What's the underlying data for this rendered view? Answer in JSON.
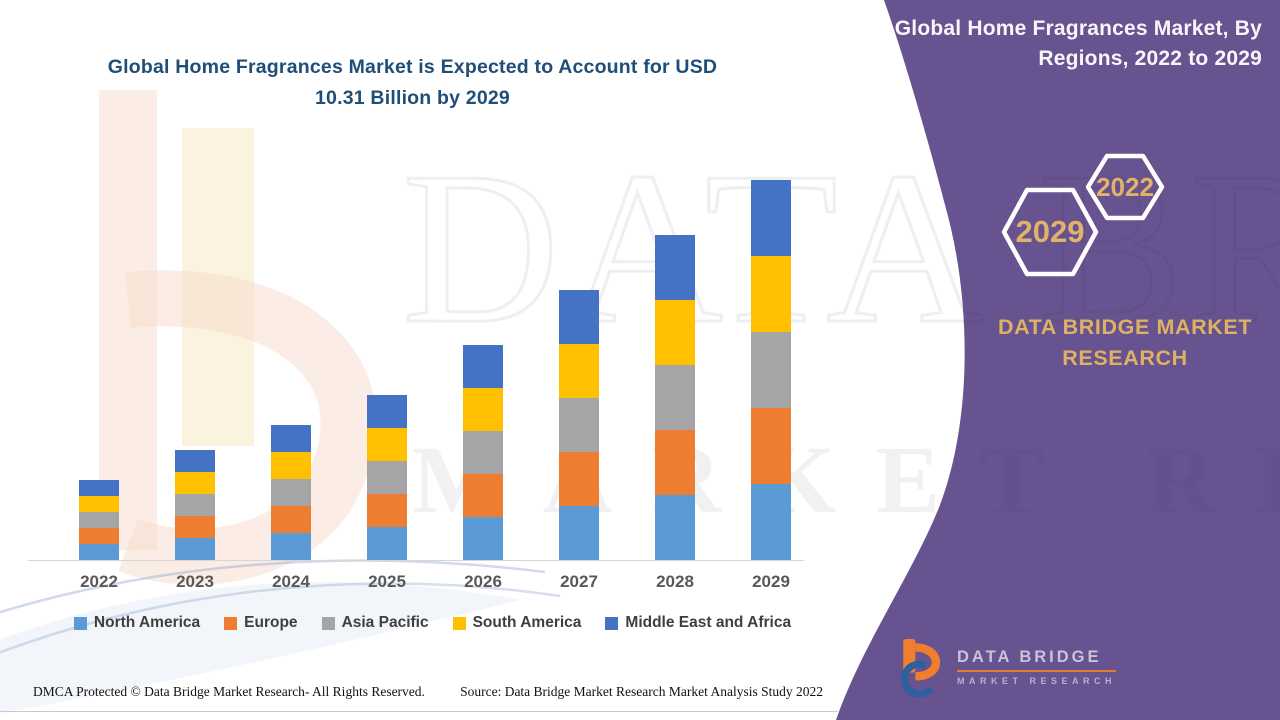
{
  "left_panel": {
    "title_line1": "Global Home Fragrances Market is Expected to Account for USD",
    "title_line2": "10.31 Billion by 2029",
    "footer": {
      "dmca": "DMCA Protected © Data Bridge Market Research- All Rights Reserved.",
      "source": "Source: Data Bridge Market Research Market Analysis Study 2022"
    }
  },
  "right_panel": {
    "title_line1": "Global Home Fragrances Market, By",
    "title_line2": "Regions, 2022 to 2029",
    "hexagon_back_label": "2029",
    "hexagon_front_label": "2022",
    "brand_line1": "DATA BRIDGE MARKET",
    "brand_line2": "RESEARCH",
    "logo_name": "DATA BRIDGE",
    "logo_sub": "MARKET RESEARCH"
  },
  "watermark": {
    "row1": "DATA BRIDGE",
    "row2": "MARKET RESEARCH"
  },
  "colors": {
    "purple_panel": "#665390",
    "gold_accent": "#DFB163",
    "title_blue": "#1F4E79"
  },
  "chart_data": {
    "type": "bar",
    "stacked": true,
    "title": "Global Home Fragrances Market is Expected to Account for USD 10.31 Billion by 2029",
    "unit": "USD Billion",
    "categories": [
      "2022",
      "2023",
      "2024",
      "2025",
      "2026",
      "2027",
      "2028",
      "2029"
    ],
    "series": [
      {
        "name": "North America",
        "color": "#5B9BD5",
        "values": [
          0.448,
          0.594,
          0.748,
          0.894,
          1.178,
          1.472,
          1.762,
          2.062
        ]
      },
      {
        "name": "Europe",
        "color": "#ED7D31",
        "values": [
          0.448,
          0.594,
          0.748,
          0.894,
          1.178,
          1.472,
          1.762,
          2.062
        ]
      },
      {
        "name": "Asia Pacific",
        "color": "#A5A5A5",
        "values": [
          0.448,
          0.594,
          0.748,
          0.894,
          1.178,
          1.472,
          1.762,
          2.062
        ]
      },
      {
        "name": "South America",
        "color": "#FFC000",
        "values": [
          0.448,
          0.594,
          0.748,
          0.894,
          1.178,
          1.472,
          1.762,
          2.062
        ]
      },
      {
        "name": "Middle East and Africa",
        "color": "#4472C4",
        "values": [
          0.448,
          0.594,
          0.748,
          0.894,
          1.178,
          1.472,
          1.762,
          2.062
        ]
      }
    ],
    "totals": [
      2.24,
      2.97,
      3.74,
      4.47,
      5.89,
      7.36,
      8.81,
      10.31
    ],
    "ylim": [
      0,
      10.5
    ],
    "xlabel": "",
    "ylabel": "",
    "grid": false,
    "y_axis_hidden": true,
    "legend_position": "bottom",
    "values_are_estimates_from_bar_heights": true
  }
}
